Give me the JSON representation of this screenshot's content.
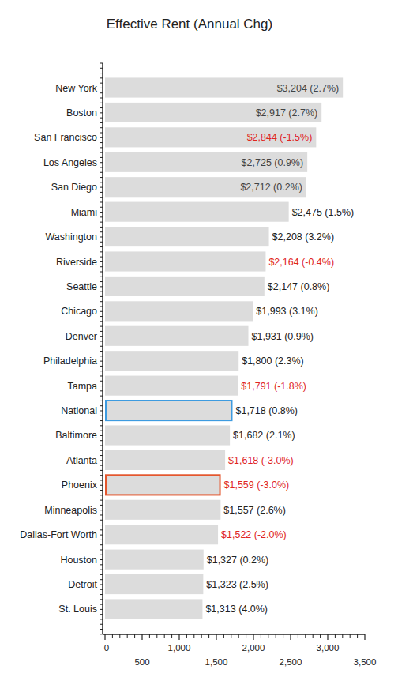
{
  "chart_data": {
    "type": "bar",
    "title": "Effective Rent (Annual Chg)",
    "orientation": "horizontal",
    "categories": [
      "New York",
      "Boston",
      "San Francisco",
      "Los Angeles",
      "San Diego",
      "Miami",
      "Washington",
      "Riverside",
      "Seattle",
      "Chicago",
      "Denver",
      "Philadelphia",
      "Tampa",
      "National",
      "Baltimore",
      "Atlanta",
      "Phoenix",
      "Minneapolis",
      "Dallas-Fort Worth",
      "Houston",
      "Detroit",
      "St. Louis"
    ],
    "values": [
      3204,
      2917,
      2844,
      2725,
      2712,
      2475,
      2208,
      2164,
      2147,
      1993,
      1931,
      1800,
      1791,
      1718,
      1682,
      1618,
      1559,
      1557,
      1522,
      1327,
      1323,
      1313
    ],
    "changes": [
      2.7,
      2.7,
      -1.5,
      0.9,
      0.2,
      1.5,
      3.2,
      -0.4,
      0.8,
      3.1,
      0.9,
      2.3,
      -1.8,
      0.8,
      2.1,
      -3.0,
      -3.0,
      2.6,
      -2.0,
      0.2,
      2.5,
      4.0
    ],
    "value_labels": [
      "$3,204 (2.7%)",
      "$2,917 (2.7%)",
      "$2,844 (-1.5%)",
      "$2,725 (0.9%)",
      "$2,712 (0.2%)",
      "$2,475 (1.5%)",
      "$2,208 (3.2%)",
      "$2,164 (-0.4%)",
      "$2,147 (0.8%)",
      "$1,993 (3.1%)",
      "$1,931 (0.9%)",
      "$1,800 (2.3%)",
      "$1,791 (-1.8%)",
      "$1,718 (0.8%)",
      "$1,682 (2.1%)",
      "$1,618 (-3.0%)",
      "$1,559 (-3.0%)",
      "$1,557 (2.6%)",
      "$1,522 (-2.0%)",
      "$1,327 (0.2%)",
      "$1,323 (2.5%)",
      "$1,313 (4.0%)"
    ],
    "data_labels": true,
    "color": "#dcdcdc",
    "colors": [
      "#dcdcdc",
      "#dcdcdc",
      "#dcdcdc",
      "#dcdcdc",
      "#dcdcdc",
      "#dcdcdc",
      "#dcdcdc",
      "#dcdcdc",
      "#dcdcdc",
      "#dcdcdc",
      "#dcdcdc",
      "#dcdcdc",
      "#dcdcdc",
      "#3d9be0",
      "#dcdcdc",
      "#dcdcdc",
      "#e4572e",
      "#dcdcdc",
      "#dcdcdc",
      "#dcdcdc",
      "#dcdcdc",
      "#dcdcdc"
    ],
    "xlim": [
      0,
      3500
    ],
    "xticks": [
      {
        "value": 0,
        "label": "-0"
      },
      500,
      {
        "value": 1000,
        "label": "1,000"
      },
      {
        "value": 1500,
        "label": "1,500"
      },
      {
        "value": 2000,
        "label": "2,000"
      },
      {
        "value": 2500,
        "label": "2,500"
      },
      {
        "value": 3000,
        "label": "3,000"
      },
      {
        "value": 3500,
        "label": "3,500"
      }
    ],
    "grid": false
  }
}
